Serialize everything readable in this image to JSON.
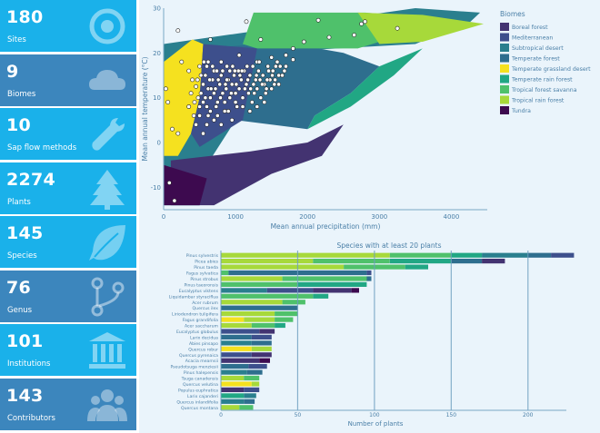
{
  "stats": [
    {
      "value": "180",
      "label": "Sites",
      "icon": "target-icon",
      "color": "#1ab1ea"
    },
    {
      "value": "9",
      "label": "Biomes",
      "icon": "cloud-icon",
      "color": "#3c86bd"
    },
    {
      "value": "10",
      "label": "Sap flow methods",
      "icon": "wrench-icon",
      "color": "#1ab1ea"
    },
    {
      "value": "2274",
      "label": "Plants",
      "icon": "tree-icon",
      "color": "#1ab1ea"
    },
    {
      "value": "145",
      "label": "Species",
      "icon": "leaf-icon",
      "color": "#1ab1ea"
    },
    {
      "value": "76",
      "label": "Genus",
      "icon": "branch-icon",
      "color": "#3c86bd"
    },
    {
      "value": "101",
      "label": "Institutions",
      "icon": "institution-icon",
      "color": "#1ab1ea"
    },
    {
      "value": "143",
      "label": "Contributors",
      "icon": "users-icon",
      "color": "#3c86bd"
    }
  ],
  "chart_data": [
    {
      "type": "scatter",
      "title": "",
      "xlabel": "Mean annual precipitation (mm)",
      "ylabel": "Mean annual temperature (°C)",
      "xlim": [
        0,
        4500
      ],
      "ylim": [
        -15,
        30
      ],
      "xticks": [
        0,
        1000,
        2000,
        3000,
        4000
      ],
      "yticks": [
        -10,
        0,
        10,
        20,
        30
      ],
      "legend_title": "Biomes",
      "legend_position": "right",
      "biomes": [
        {
          "name": "Boreal forest",
          "color": "#433371"
        },
        {
          "name": "Mediterranean",
          "color": "#3d4f8c"
        },
        {
          "name": "Subtropical desert",
          "color": "#2a7f8e"
        },
        {
          "name": "Temperate forest",
          "color": "#2e6e8e"
        },
        {
          "name": "Temperate grassland desert",
          "color": "#f5e11f"
        },
        {
          "name": "Temperate rain forest",
          "color": "#21a784"
        },
        {
          "name": "Tropical forest savanna",
          "color": "#4fc16b"
        },
        {
          "name": "Tropical rain forest",
          "color": "#a7d93a"
        },
        {
          "name": "Tundra",
          "color": "#3d0a4f"
        }
      ],
      "points": [
        [
          200,
          25
        ],
        [
          1150,
          27
        ],
        [
          2150,
          27.3
        ],
        [
          2750,
          26.5
        ],
        [
          2800,
          27
        ],
        [
          3250,
          25.5
        ],
        [
          650,
          23
        ],
        [
          1350,
          23
        ],
        [
          1800,
          21
        ],
        [
          1950,
          22.5
        ],
        [
          2300,
          23.5
        ],
        [
          2650,
          24
        ],
        [
          1050,
          19.5
        ],
        [
          1300,
          18
        ],
        [
          1500,
          19
        ],
        [
          1700,
          19.5
        ],
        [
          1800,
          18.5
        ],
        [
          30,
          12
        ],
        [
          60,
          9
        ],
        [
          120,
          3
        ],
        [
          200,
          2
        ],
        [
          150,
          -13
        ],
        [
          80,
          -9
        ],
        [
          250,
          18
        ],
        [
          350,
          16
        ],
        [
          400,
          14
        ],
        [
          450,
          12.5
        ],
        [
          480,
          10
        ],
        [
          500,
          8
        ],
        [
          520,
          11
        ],
        [
          550,
          13
        ],
        [
          580,
          15
        ],
        [
          600,
          17
        ],
        [
          620,
          12
        ],
        [
          650,
          10
        ],
        [
          680,
          14
        ],
        [
          700,
          16
        ],
        [
          720,
          12
        ],
        [
          750,
          9
        ],
        [
          780,
          13
        ],
        [
          800,
          15
        ],
        [
          820,
          11
        ],
        [
          850,
          7
        ],
        [
          870,
          12
        ],
        [
          900,
          14
        ],
        [
          920,
          10
        ],
        [
          950,
          13
        ],
        [
          980,
          15
        ],
        [
          1000,
          11
        ],
        [
          1020,
          8
        ],
        [
          1050,
          12
        ],
        [
          1080,
          14
        ],
        [
          1100,
          10
        ],
        [
          1120,
          16
        ],
        [
          1150,
          13
        ],
        [
          1180,
          11
        ],
        [
          1200,
          15
        ],
        [
          1230,
          9
        ],
        [
          1250,
          13
        ],
        [
          1280,
          14
        ],
        [
          1300,
          12
        ],
        [
          1320,
          16
        ],
        [
          1350,
          10
        ],
        [
          1380,
          15
        ],
        [
          1400,
          13
        ],
        [
          1420,
          11
        ],
        [
          1450,
          17
        ],
        [
          1480,
          14
        ],
        [
          1500,
          12
        ],
        [
          1520,
          16
        ],
        [
          1550,
          14
        ],
        [
          1580,
          18
        ],
        [
          1600,
          13
        ],
        [
          1650,
          15
        ],
        [
          700,
          5
        ],
        [
          600,
          4
        ],
        [
          550,
          2
        ],
        [
          500,
          6
        ],
        [
          450,
          4
        ],
        [
          650,
          7
        ],
        [
          750,
          6
        ],
        [
          800,
          4
        ],
        [
          850,
          9
        ],
        [
          900,
          7
        ],
        [
          950,
          5
        ],
        [
          1000,
          9
        ],
        [
          1100,
          8
        ],
        [
          1200,
          7
        ],
        [
          1300,
          8
        ],
        [
          1400,
          9
        ],
        [
          500,
          17
        ],
        [
          560,
          18
        ],
        [
          620,
          18
        ],
        [
          680,
          17
        ],
        [
          740,
          16
        ],
        [
          800,
          18
        ],
        [
          880,
          17
        ],
        [
          960,
          17
        ],
        [
          1040,
          16
        ],
        [
          1160,
          17
        ],
        [
          1240,
          17
        ],
        [
          1330,
          18
        ],
        [
          1460,
          16
        ],
        [
          1560,
          17
        ],
        [
          430,
          9
        ],
        [
          470,
          14
        ],
        [
          520,
          15
        ],
        [
          580,
          10
        ],
        [
          640,
          14
        ],
        [
          700,
          11
        ],
        [
          760,
          14
        ],
        [
          820,
          16
        ],
        [
          880,
          14
        ],
        [
          940,
          11
        ],
        [
          990,
          16
        ],
        [
          1060,
          15
        ],
        [
          1130,
          12
        ],
        [
          1210,
          12
        ],
        [
          1290,
          15
        ],
        [
          1370,
          13
        ],
        [
          1440,
          14
        ],
        [
          1510,
          15
        ],
        [
          1620,
          17
        ],
        [
          1680,
          16
        ],
        [
          350,
          8
        ],
        [
          380,
          11
        ],
        [
          420,
          6
        ],
        [
          600,
          8
        ],
        [
          660,
          12
        ],
        [
          730,
          8
        ],
        [
          790,
          10
        ],
        [
          860,
          13
        ],
        [
          920,
          16
        ],
        [
          1010,
          13
        ],
        [
          1090,
          16
        ],
        [
          1170,
          14
        ],
        [
          1260,
          11
        ],
        [
          1340,
          14
        ],
        [
          1430,
          12
        ],
        [
          1540,
          13
        ],
        [
          1600,
          15
        ],
        [
          1700,
          17
        ],
        [
          550,
          9
        ],
        [
          620,
          6
        ]
      ]
    },
    {
      "type": "bar",
      "orientation": "horizontal",
      "stacked": true,
      "title": "Species with at least 20 plants",
      "xlabel": "Number of plants",
      "xlim": [
        0,
        225
      ],
      "xticks": [
        0,
        50,
        100,
        150,
        200
      ],
      "categories": [
        "Pinus sylvestris",
        "Picea abies",
        "Pinus taeda",
        "Fagus sylvatica",
        "Pinus strobus",
        "Pinus taeoronsis",
        "Eucalyptus viktens",
        "Liquidambar styraciflua",
        "Acer rubrum",
        "Quercus ilex",
        "Liriodendron tulipifera",
        "Fagus grandifolia",
        "Acer saccharum",
        "Eucalyptus globulus",
        "Larix decidua",
        "Abies pinsapo",
        "Quercus robur",
        "Quercus pyrenaica",
        "Acacia mearnsii",
        "Pseudotsuga menziesii",
        "Pinus halepensis",
        "Tsuga canadensis",
        "Quercus velutina",
        "Populus euphratica",
        "Larix cajanderi",
        "Quercus inlandifolia",
        "Quercus montana"
      ],
      "segments": [
        [
          [
            110,
            "#a7d93a"
          ],
          [
            40,
            "#4fc16b"
          ],
          [
            20,
            "#21a784"
          ],
          [
            30,
            "#2a7f8e"
          ],
          [
            15,
            "#2e6e8e"
          ],
          [
            15,
            "#3d4f8c"
          ]
        ],
        [
          [
            60,
            "#a7d93a"
          ],
          [
            50,
            "#4fc16b"
          ],
          [
            40,
            "#21a784"
          ],
          [
            20,
            "#2e6e8e"
          ],
          [
            15,
            "#433371"
          ]
        ],
        [
          [
            80,
            "#a7d93a"
          ],
          [
            40,
            "#4fc16b"
          ],
          [
            15,
            "#21a784"
          ]
        ],
        [
          [
            5,
            "#4fc16b"
          ],
          [
            90,
            "#2e6e8e"
          ],
          [
            3,
            "#3d4f8c"
          ]
        ],
        [
          [
            40,
            "#a7d93a"
          ],
          [
            55,
            "#4fc16b"
          ],
          [
            3,
            "#2e6e8e"
          ]
        ],
        [
          [
            50,
            "#4fc16b"
          ],
          [
            45,
            "#21a784"
          ]
        ],
        [
          [
            30,
            "#2a7f8e"
          ],
          [
            30,
            "#3d4f8c"
          ],
          [
            25,
            "#433371"
          ],
          [
            5,
            "#3d0a4f"
          ]
        ],
        [
          [
            60,
            "#4fc16b"
          ],
          [
            10,
            "#21a784"
          ]
        ],
        [
          [
            40,
            "#a7d93a"
          ],
          [
            15,
            "#4fc16b"
          ]
        ],
        [
          [
            50,
            "#2e6e8e"
          ]
        ],
        [
          [
            35,
            "#a7d93a"
          ],
          [
            15,
            "#4fc16b"
          ]
        ],
        [
          [
            15,
            "#f5e11f"
          ],
          [
            20,
            "#a7d93a"
          ],
          [
            12,
            "#4fc16b"
          ]
        ],
        [
          [
            20,
            "#a7d93a"
          ],
          [
            15,
            "#4fc16b"
          ],
          [
            7,
            "#21a784"
          ]
        ],
        [
          [
            25,
            "#3d4f8c"
          ],
          [
            10,
            "#433371"
          ]
        ],
        [
          [
            20,
            "#2e6e8e"
          ],
          [
            13,
            "#3d4f8c"
          ]
        ],
        [
          [
            20,
            "#2a7f8e"
          ],
          [
            13,
            "#2e6e8e"
          ]
        ],
        [
          [
            20,
            "#f5e11f"
          ],
          [
            13,
            "#a7d93a"
          ]
        ],
        [
          [
            20,
            "#3d4f8c"
          ],
          [
            13,
            "#433371"
          ]
        ],
        [
          [
            25,
            "#433371"
          ],
          [
            7,
            "#3d0a4f"
          ]
        ],
        [
          [
            18,
            "#2e6e8e"
          ],
          [
            12,
            "#3d4f8c"
          ]
        ],
        [
          [
            17,
            "#2a7f8e"
          ],
          [
            10,
            "#2e6e8e"
          ]
        ],
        [
          [
            15,
            "#a7d93a"
          ],
          [
            10,
            "#4fc16b"
          ]
        ],
        [
          [
            20,
            "#f5e11f"
          ],
          [
            5,
            "#a7d93a"
          ]
        ],
        [
          [
            15,
            "#433371"
          ],
          [
            10,
            "#3d4f8c"
          ]
        ],
        [
          [
            15,
            "#21a784"
          ],
          [
            8,
            "#2a7f8e"
          ]
        ],
        [
          [
            15,
            "#2a7f8e"
          ],
          [
            7,
            "#2e6e8e"
          ]
        ],
        [
          [
            12,
            "#a7d93a"
          ],
          [
            9,
            "#4fc16b"
          ]
        ]
      ]
    }
  ]
}
